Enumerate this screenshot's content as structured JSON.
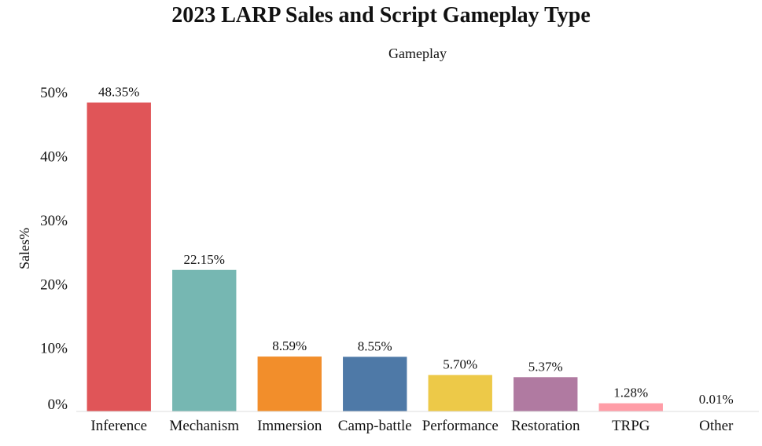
{
  "chart_data": {
    "type": "bar",
    "title": "2023 LARP Sales and Script Gameplay Type",
    "xlabel": "Gameplay",
    "ylabel": "Sales%",
    "categories": [
      "Inference",
      "Mechanism",
      "Immersion",
      "Camp-battle",
      "Performance",
      "Restoration",
      "TRPG",
      "Other"
    ],
    "values": [
      48.35,
      22.15,
      8.59,
      8.55,
      5.7,
      5.37,
      1.28,
      0.01
    ],
    "value_labels": [
      "48.35%",
      "22.15%",
      "8.59%",
      "8.55%",
      "5.70%",
      "5.37%",
      "1.28%",
      "0.01%"
    ],
    "colors": [
      "#e05558",
      "#76b7b2",
      "#f28e2b",
      "#4e79a7",
      "#edc948",
      "#b07aa1",
      "#ff9da7",
      "#9c755f"
    ],
    "yticks": [
      0,
      10,
      20,
      30,
      40,
      50
    ],
    "ytick_labels": [
      "0%",
      "10%",
      "20%",
      "30%",
      "40%",
      "50%"
    ],
    "ylim": [
      0,
      51
    ],
    "grid": false,
    "legend": "none"
  }
}
